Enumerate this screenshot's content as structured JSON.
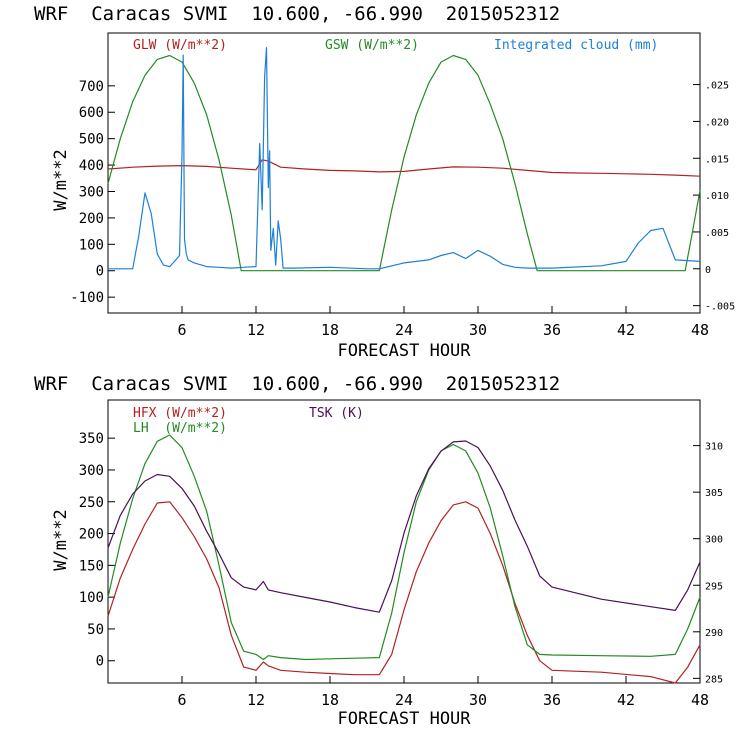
{
  "chart_data": [
    {
      "type": "line",
      "title": "WRF  Caracas SVMI  10.600, -66.990  2015052312",
      "xlabel": "FORECAST HOUR",
      "ylabel": "W/m**2",
      "xlim": [
        0,
        48
      ],
      "ylim": [
        -160,
        900
      ],
      "y2lim": [
        -0.006,
        0.032
      ],
      "x_ticks": [
        6,
        12,
        18,
        24,
        30,
        36,
        42,
        48
      ],
      "y_ticks": [
        -100,
        0,
        100,
        200,
        300,
        400,
        500,
        600,
        700
      ],
      "y2_ticks": [
        -0.005,
        0,
        0.005,
        0.01,
        0.015,
        0.02,
        0.025
      ],
      "y2_tick_labels": [
        "-.005",
        "0",
        ".005",
        ".010",
        ".015",
        ".020",
        ".025"
      ],
      "legend": [
        {
          "label": "GLW (W/m**2)",
          "color": "#b22222"
        },
        {
          "label": "GSW (W/m**2)",
          "color": "#228b22"
        },
        {
          "label": "Integrated cloud (mm)",
          "color": "#1e7fd8"
        }
      ],
      "series": [
        {
          "name": "GLW (W/m**2)",
          "color": "#b22222",
          "axis": "left",
          "x": [
            0,
            2,
            4,
            6,
            8,
            10,
            12,
            12.5,
            13,
            14,
            16,
            18,
            20,
            22,
            24,
            26,
            28,
            30,
            32,
            34,
            36,
            38,
            40,
            42,
            44,
            46,
            48
          ],
          "y": [
            385,
            392,
            396,
            398,
            395,
            388,
            382,
            420,
            415,
            392,
            385,
            380,
            378,
            374,
            376,
            385,
            393,
            392,
            388,
            380,
            372,
            370,
            369,
            367,
            365,
            362,
            358
          ]
        },
        {
          "name": "GSW (W/m**2)",
          "color": "#228b22",
          "axis": "left",
          "x": [
            0,
            1,
            2,
            3,
            4,
            5,
            6,
            7,
            8,
            9,
            10,
            10.8,
            22,
            23,
            24,
            25,
            26,
            27,
            28,
            29,
            30,
            31,
            32,
            33,
            34,
            34.8,
            46.8,
            47.4,
            48
          ],
          "y": [
            330,
            500,
            640,
            740,
            800,
            815,
            790,
            710,
            590,
            420,
            210,
            0,
            0,
            230,
            430,
            590,
            710,
            790,
            815,
            800,
            740,
            630,
            500,
            330,
            140,
            0,
            0,
            150,
            305
          ]
        },
        {
          "name": "Integrated cloud (mm)",
          "color": "#1e7fd8",
          "axis": "right",
          "x": [
            0,
            2,
            2.5,
            3,
            3.5,
            4,
            4.5,
            5,
            5.5,
            5.8,
            6,
            6.1,
            6.2,
            6.35,
            6.5,
            7,
            8,
            9,
            10,
            11,
            12,
            12.3,
            12.5,
            12.7,
            12.85,
            13,
            13.1,
            13.2,
            13.4,
            13.6,
            13.8,
            14,
            14.2,
            15,
            18,
            21,
            22,
            24,
            26,
            27,
            28,
            29,
            30,
            31,
            32,
            33,
            34,
            36,
            40,
            42,
            43,
            44,
            45,
            46,
            48
          ],
          "y": [
            0,
            0,
            0.0045,
            0.0103,
            0.0075,
            0.002,
            0.0005,
            0.0003,
            0.0012,
            0.0018,
            0.0155,
            0.029,
            0.004,
            0.002,
            0.0012,
            0.0008,
            0.0003,
            0.0002,
            0.0001,
            0.0002,
            0.0003,
            0.017,
            0.008,
            0.026,
            0.03,
            0.011,
            0.016,
            0.0025,
            0.0055,
            0.0005,
            0.0065,
            0.004,
            0.0001,
            0.0001,
            0.0002,
            0,
            0,
            0.0008,
            0.0012,
            0.0018,
            0.0022,
            0.0014,
            0.0025,
            0.0017,
            0.0006,
            0.0002,
            0.0001,
            0.0001,
            0.0004,
            0.001,
            0.0035,
            0.0052,
            0.0055,
            0.0012,
            0.001
          ]
        }
      ]
    },
    {
      "type": "line",
      "title": "WRF  Caracas SVMI  10.600, -66.990  2015052312",
      "xlabel": "FORECAST HOUR",
      "ylabel": "W/m**2",
      "xlim": [
        0,
        48
      ],
      "ylim": [
        -35,
        410
      ],
      "y2lim": [
        284.5,
        314.9
      ],
      "x_ticks": [
        6,
        12,
        18,
        24,
        30,
        36,
        42,
        48
      ],
      "y_ticks": [
        0,
        50,
        100,
        150,
        200,
        250,
        300,
        350
      ],
      "y2_ticks": [
        285,
        290,
        295,
        300,
        305,
        310
      ],
      "y2_tick_labels": [
        "285",
        "290",
        "295",
        "300",
        "305",
        "310"
      ],
      "legend": [
        {
          "label": "HFX (W/m**2)",
          "color": "#b22222"
        },
        {
          "label": "LH  (W/m**2)",
          "color": "#228b22"
        },
        {
          "label": "TSK (K)",
          "color": "#4b0f55"
        }
      ],
      "series": [
        {
          "name": "HFX (W/m**2)",
          "color": "#b22222",
          "axis": "left",
          "x": [
            0,
            1,
            2,
            3,
            4,
            5,
            6,
            7,
            8,
            9,
            10,
            11,
            12,
            12.6,
            13,
            14,
            16,
            18,
            20,
            22,
            23,
            24,
            25,
            26,
            27,
            28,
            29,
            30,
            31,
            32,
            33,
            34,
            35,
            36,
            40,
            44,
            46,
            47,
            48
          ],
          "y": [
            70,
            130,
            175,
            215,
            248,
            250,
            225,
            195,
            160,
            115,
            40,
            -10,
            -15,
            -2,
            -8,
            -15,
            -18,
            -20,
            -22,
            -22,
            10,
            80,
            140,
            185,
            220,
            245,
            250,
            240,
            200,
            150,
            90,
            40,
            0,
            -15,
            -18,
            -25,
            -35,
            -10,
            25
          ]
        },
        {
          "name": "LH  (W/m**2)",
          "color": "#228b22",
          "axis": "left",
          "x": [
            0,
            1,
            2,
            3,
            4,
            5,
            6,
            7,
            8,
            9,
            10,
            11,
            12,
            12.6,
            13,
            14,
            16,
            18,
            20,
            22,
            23,
            24,
            25,
            26,
            27,
            28,
            29,
            30,
            31,
            32,
            33,
            34,
            35,
            36,
            40,
            44,
            46,
            47,
            48
          ],
          "y": [
            100,
            185,
            255,
            310,
            345,
            355,
            335,
            290,
            235,
            150,
            60,
            15,
            10,
            2,
            8,
            5,
            2,
            3,
            4,
            5,
            75,
            170,
            250,
            300,
            330,
            340,
            330,
            295,
            240,
            165,
            85,
            25,
            10,
            9,
            8,
            7,
            10,
            50,
            100
          ]
        },
        {
          "name": "TSK (K)",
          "color": "#4b0f55",
          "axis": "right",
          "x": [
            0,
            1,
            2,
            3,
            4,
            5,
            6,
            7,
            8,
            9,
            10,
            11,
            12,
            12.6,
            13,
            14,
            16,
            18,
            20,
            22,
            23,
            24,
            25,
            26,
            27,
            28,
            29,
            30,
            31,
            32,
            33,
            34,
            35,
            36,
            40,
            44,
            46,
            47,
            48
          ],
          "y": [
            299,
            302.5,
            304.8,
            306.2,
            306.9,
            306.7,
            305.4,
            303.5,
            300.8,
            298.4,
            295.8,
            294.8,
            294.5,
            295.4,
            294.5,
            294.2,
            293.7,
            293.2,
            292.6,
            292.1,
            295.5,
            300.6,
            304.6,
            307.5,
            309.4,
            310.4,
            310.5,
            309.8,
            307.8,
            305.2,
            302,
            299.2,
            296,
            294.8,
            293.5,
            292.7,
            292.3,
            294.5,
            297.5
          ]
        }
      ]
    }
  ]
}
